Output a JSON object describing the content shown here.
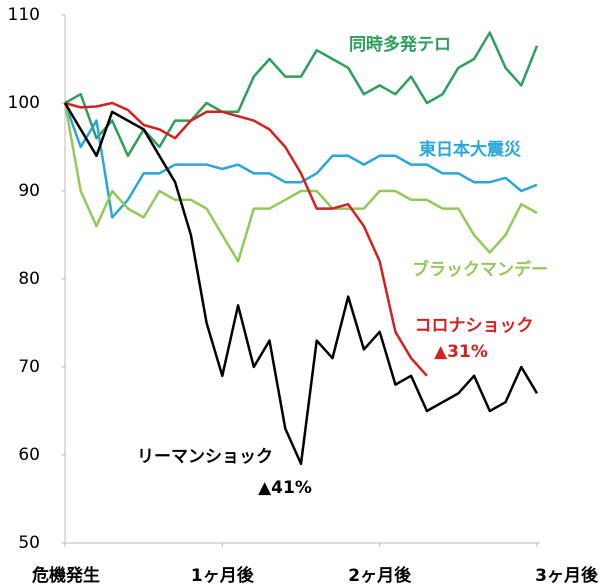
{
  "chart_data": {
    "type": "line",
    "x": [
      0,
      3,
      6,
      9,
      12,
      15,
      18,
      21,
      24,
      27,
      30,
      33,
      36,
      39,
      42,
      45,
      48,
      51,
      54,
      57,
      60,
      63,
      66,
      69,
      72,
      75,
      78,
      81,
      84,
      87,
      90
    ],
    "xlim": [
      0,
      90
    ],
    "xticks": [
      {
        "value": 0,
        "label": "危機発生"
      },
      {
        "value": 30,
        "label": "1ヶ月後"
      },
      {
        "value": 60,
        "label": "2ヶ月後"
      },
      {
        "value": 90,
        "label": "3ヶ月後"
      }
    ],
    "ylim": [
      50,
      110
    ],
    "yticks": [
      50,
      60,
      70,
      80,
      90,
      100,
      110
    ],
    "series": [
      {
        "name": "同時多発テロ",
        "color": "#2ca05a",
        "values": [
          100,
          101,
          96,
          98,
          94,
          97,
          95,
          98,
          98,
          100,
          99,
          99,
          103,
          105,
          103,
          103,
          106,
          105,
          104,
          101,
          102,
          101,
          103,
          100,
          101,
          104,
          105,
          108,
          104,
          102,
          106.5
        ]
      },
      {
        "name": "東日本大震災",
        "color": "#2aa7d8",
        "values": [
          100,
          95,
          98,
          87,
          89,
          92,
          92,
          93,
          93,
          93,
          92.5,
          93,
          92,
          92,
          91,
          91,
          92,
          94,
          94,
          93,
          94,
          94,
          93,
          93,
          92,
          92,
          91,
          91,
          91.5,
          90,
          90.7
        ]
      },
      {
        "name": "ブラックマンデー",
        "color": "#92c95a",
        "values": [
          100,
          90,
          86,
          90,
          88,
          87,
          90,
          89,
          89,
          88,
          85,
          82,
          88,
          88,
          89,
          90,
          90,
          88,
          88,
          88,
          90,
          90,
          89,
          89,
          88,
          88,
          85,
          83,
          85,
          88.5,
          87.5
        ]
      },
      {
        "name": "コロナショック",
        "color": "#d42020",
        "values": [
          100,
          99.5,
          99.6,
          100,
          99.2,
          97.5,
          97,
          96,
          98,
          99,
          99,
          98.5,
          98,
          97,
          95,
          92,
          88,
          88,
          88.5,
          86,
          82,
          74,
          71,
          69,
          null,
          null,
          null,
          null,
          null,
          null,
          null
        ]
      },
      {
        "name": "リーマンショック",
        "color": "#000000",
        "values": [
          100,
          97,
          94,
          99,
          98,
          97,
          94,
          91,
          85,
          75,
          69,
          77,
          70,
          73,
          63,
          59,
          73,
          71,
          78,
          72,
          74,
          68,
          69,
          65,
          66,
          67,
          69,
          65,
          66,
          70,
          67
        ]
      }
    ],
    "annotations": [
      "▲31%",
      "▲41%"
    ]
  }
}
